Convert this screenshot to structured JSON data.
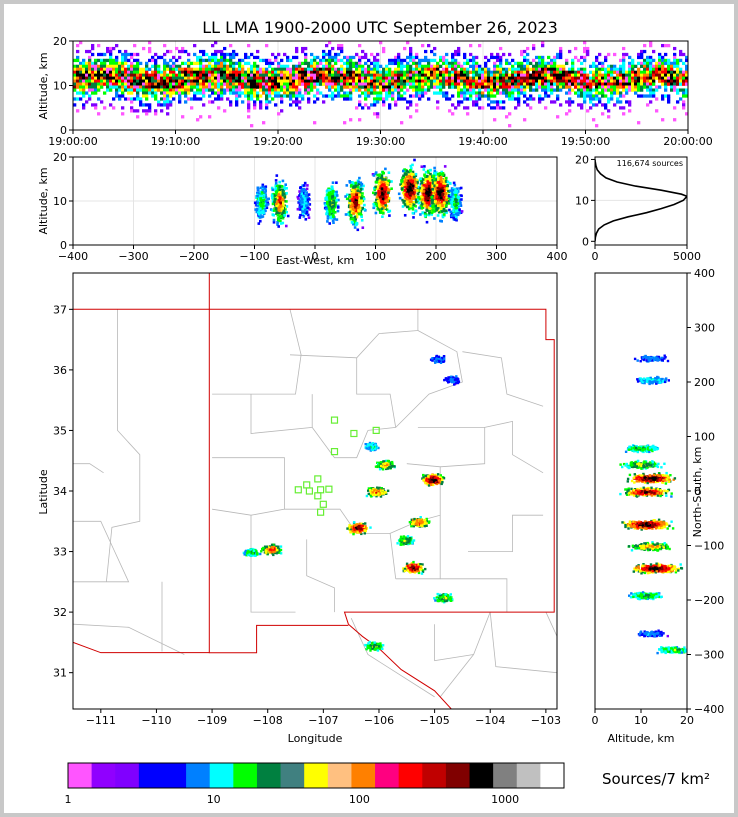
{
  "title": "LL LMA 1900-2000 UTC September 26, 2023",
  "panels": {
    "time_height": {
      "ylabel": "Altitude, km",
      "yticks": [
        "0",
        "10",
        "20"
      ],
      "xticks": [
        "19:00:00",
        "19:10:00",
        "19:20:00",
        "19:30:00",
        "19:40:00",
        "19:50:00",
        "20:00:00"
      ]
    },
    "ew_height": {
      "ylabel": "Altitude, km",
      "xlabel": "East-West, km",
      "yticks": [
        "0",
        "10",
        "20"
      ],
      "xticks": [
        "−400",
        "−300",
        "−200",
        "−100",
        "0",
        "100",
        "200",
        "300",
        "400"
      ]
    },
    "histogram": {
      "annotation": "116,674 sources",
      "yticks": [
        "0",
        "10",
        "20"
      ],
      "xticks": [
        "0",
        "5000"
      ]
    },
    "map": {
      "ylabel": "Latitude",
      "xlabel": "Longitude",
      "yticks": [
        "31",
        "32",
        "33",
        "34",
        "35",
        "36",
        "37"
      ],
      "xticks": [
        "−111",
        "−110",
        "−109",
        "−108",
        "−107",
        "−106",
        "−105",
        "−104",
        "−103"
      ]
    },
    "ns_height": {
      "ylabel": "North-South, km",
      "xlabel": "Altitude, km",
      "yticks": [
        "−400",
        "−300",
        "−200",
        "−100",
        "0",
        "100",
        "200",
        "300",
        "400"
      ],
      "xticks": [
        "0",
        "10",
        "20"
      ]
    }
  },
  "colorbar": {
    "label": "Sources/7 km²",
    "ticks": [
      "1",
      "10",
      "100",
      "1000"
    ],
    "colors": [
      "#ff55ff",
      "#9000ff",
      "#8000ff",
      "#0000ff",
      "#0000ff",
      "#0080ff",
      "#00ffff",
      "#00ff00",
      "#008040",
      "#408080",
      "#ffff00",
      "#ffc080",
      "#ff8000",
      "#ff0080",
      "#ff0000",
      "#c00000",
      "#800000",
      "#000000",
      "#808080",
      "#c0c0c0",
      "#ffffff"
    ]
  },
  "chart_data": [
    {
      "type": "heatmap",
      "title": "LL LMA 1900-2000 UTC September 26, 2023",
      "xlabel": "",
      "ylabel": "Altitude, km",
      "xlim": [
        "19:00:00",
        "20:00:00"
      ],
      "ylim": [
        0,
        20
      ],
      "description_of_values": "source density vs. time and altitude; dense band 8-15 km",
      "core_altitude_km": [
        8,
        15
      ]
    },
    {
      "type": "heatmap",
      "xlabel": "East-West, km",
      "ylabel": "Altitude, km",
      "xlim": [
        -400,
        400
      ],
      "ylim": [
        0,
        20
      ],
      "cells": [
        {
          "x": -90,
          "z": 10,
          "intensity": 0.5
        },
        {
          "x": -60,
          "z": 10,
          "intensity": 0.8
        },
        {
          "x": -20,
          "z": 10,
          "intensity": 0.4
        },
        {
          "x": 25,
          "z": 10,
          "intensity": 0.6
        },
        {
          "x": 65,
          "z": 10,
          "intensity": 0.9
        },
        {
          "x": 110,
          "z": 12,
          "intensity": 0.95
        },
        {
          "x": 155,
          "z": 13,
          "intensity": 1.0
        },
        {
          "x": 185,
          "z": 12,
          "intensity": 1.0
        },
        {
          "x": 205,
          "z": 12,
          "intensity": 1.0
        },
        {
          "x": 230,
          "z": 10,
          "intensity": 0.5
        }
      ]
    },
    {
      "type": "line",
      "xlabel": "",
      "ylabel": "",
      "xlim": [
        0,
        5000
      ],
      "ylim": [
        0,
        20
      ],
      "x": [
        0,
        20,
        80,
        200,
        500,
        1000,
        1800,
        2800,
        3600,
        4300,
        4800,
        5000,
        4700,
        3600,
        2200,
        1200,
        600,
        300,
        120,
        50,
        10,
        0
      ],
      "y": [
        0,
        1,
        2,
        3,
        4,
        5,
        6,
        7,
        8,
        9,
        10,
        11,
        11.5,
        12.5,
        13.5,
        14.5,
        15.5,
        16.5,
        17.5,
        18.5,
        19.5,
        20
      ]
    },
    {
      "type": "scatter",
      "xlabel": "Longitude",
      "ylabel": "Latitude",
      "xlim": [
        -111.5,
        -102.8
      ],
      "ylim": [
        30.4,
        37.6
      ],
      "stations": [
        {
          "lon": -106.8,
          "lat": 35.17
        },
        {
          "lon": -106.05,
          "lat": 35.0
        },
        {
          "lon": -106.45,
          "lat": 34.95
        },
        {
          "lon": -106.8,
          "lat": 34.65
        },
        {
          "lon": -107.1,
          "lat": 34.2
        },
        {
          "lon": -107.3,
          "lat": 34.1
        },
        {
          "lon": -107.45,
          "lat": 34.02
        },
        {
          "lon": -107.25,
          "lat": 34.0
        },
        {
          "lon": -107.05,
          "lat": 34.02
        },
        {
          "lon": -106.9,
          "lat": 34.03
        },
        {
          "lon": -107.0,
          "lat": 33.78
        },
        {
          "lon": -107.05,
          "lat": 33.65
        },
        {
          "lon": -107.1,
          "lat": 33.92
        }
      ],
      "source_clusters": [
        {
          "lon": -105.05,
          "lat": 34.2,
          "intensity": 1.0
        },
        {
          "lon": -105.3,
          "lat": 33.5,
          "intensity": 0.8
        },
        {
          "lon": -105.4,
          "lat": 32.75,
          "intensity": 0.95
        },
        {
          "lon": -104.85,
          "lat": 32.25,
          "intensity": 0.6
        },
        {
          "lon": -106.4,
          "lat": 33.4,
          "intensity": 0.95
        },
        {
          "lon": -105.9,
          "lat": 34.45,
          "intensity": 0.7
        },
        {
          "lon": -106.05,
          "lat": 34.0,
          "intensity": 0.8
        },
        {
          "lon": -107.95,
          "lat": 33.05,
          "intensity": 0.8
        },
        {
          "lon": -108.3,
          "lat": 33.0,
          "intensity": 0.5
        },
        {
          "lon": -106.1,
          "lat": 31.45,
          "intensity": 0.6
        },
        {
          "lon": -104.95,
          "lat": 36.2,
          "intensity": 0.3
        },
        {
          "lon": -104.7,
          "lat": 35.85,
          "intensity": 0.3
        },
        {
          "lon": -105.55,
          "lat": 33.2,
          "intensity": 0.6
        },
        {
          "lon": -106.15,
          "lat": 34.75,
          "intensity": 0.4
        }
      ]
    },
    {
      "type": "heatmap",
      "xlabel": "Altitude, km",
      "ylabel": "North-South, km",
      "xlim": [
        0,
        20
      ],
      "ylim": [
        -400,
        400
      ],
      "cells": [
        {
          "z": 10,
          "y": 80,
          "intensity": 0.5
        },
        {
          "z": 10,
          "y": 50,
          "intensity": 0.6
        },
        {
          "z": 12,
          "y": 25,
          "intensity": 1.0
        },
        {
          "z": 11,
          "y": 0,
          "intensity": 0.9
        },
        {
          "z": 11,
          "y": -60,
          "intensity": 1.0
        },
        {
          "z": 12,
          "y": -100,
          "intensity": 0.7
        },
        {
          "z": 13,
          "y": -140,
          "intensity": 1.0
        },
        {
          "z": 11,
          "y": -190,
          "intensity": 0.5
        },
        {
          "z": 12,
          "y": -260,
          "intensity": 0.3
        },
        {
          "z": 17,
          "y": -290,
          "intensity": 0.5
        },
        {
          "z": 12,
          "y": 245,
          "intensity": 0.3
        },
        {
          "z": 12,
          "y": 205,
          "intensity": 0.4
        }
      ]
    }
  ]
}
